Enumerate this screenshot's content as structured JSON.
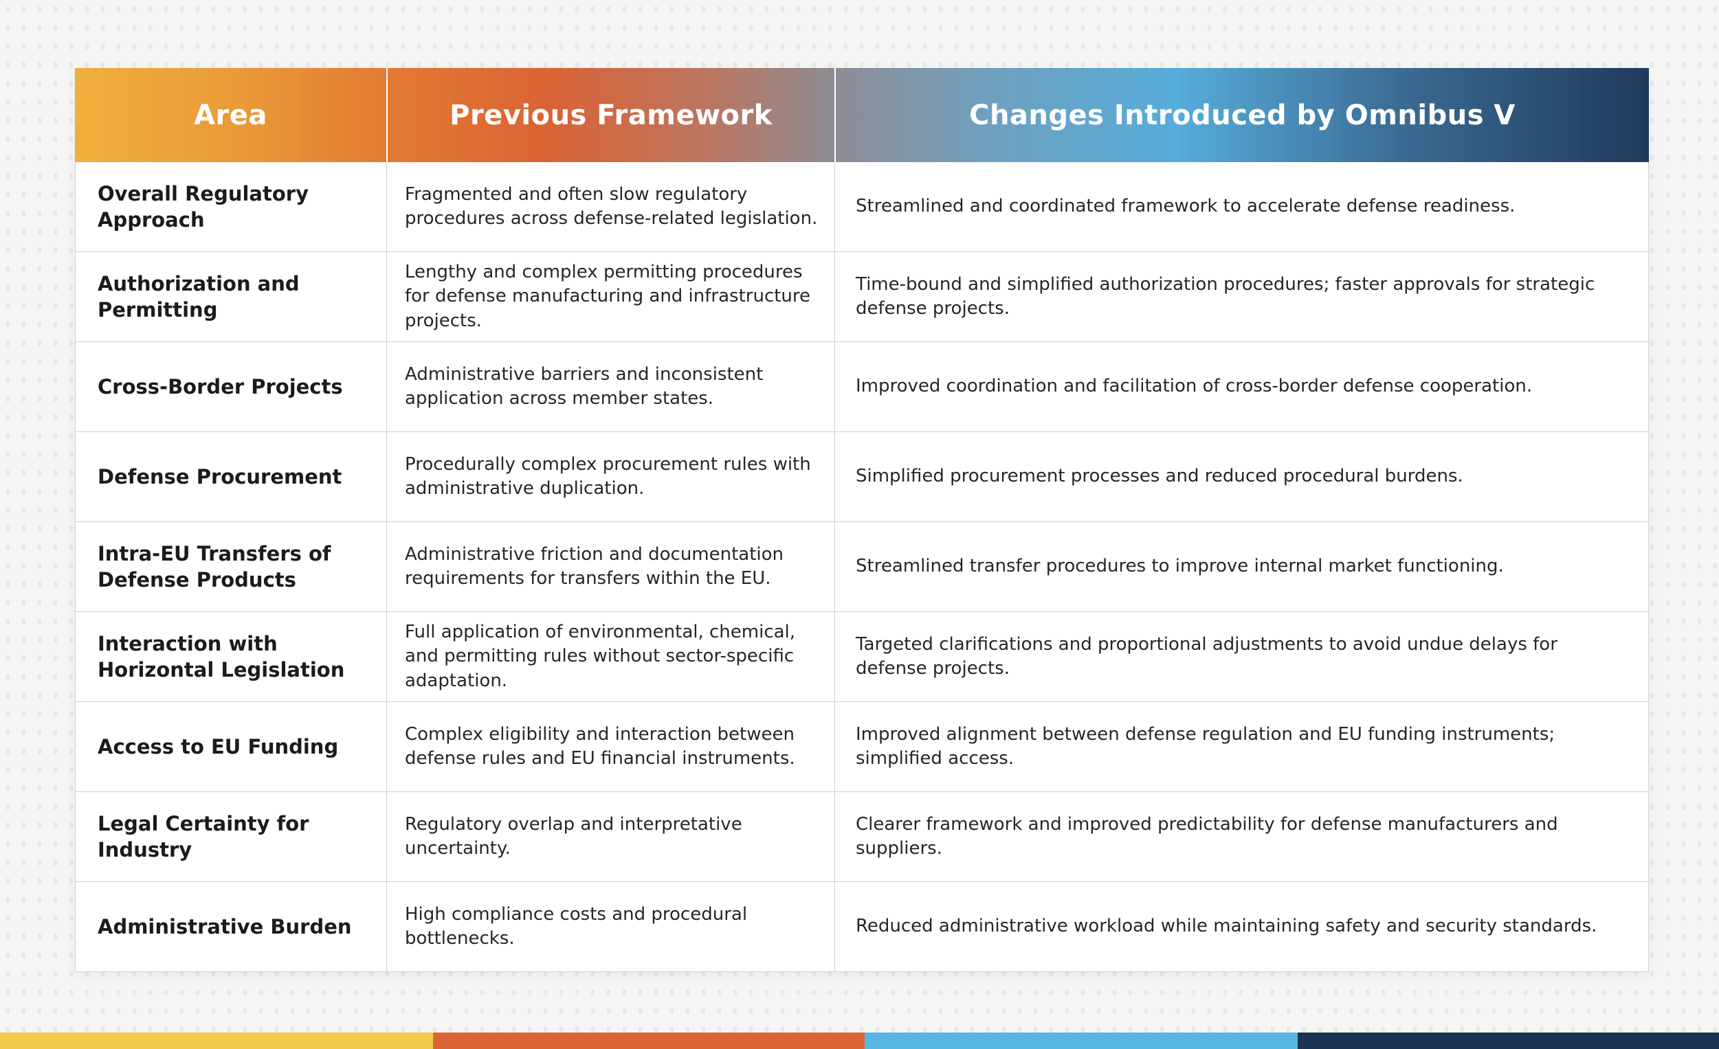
{
  "theme": {
    "css_vars": {
      "bg": "#f6f6f5",
      "dot": "#e8e8e8",
      "grad-1": "#EFAF3C",
      "grad-2": "#EA9B38",
      "grad-3": "#E37A33",
      "grad-4": "#DA6334",
      "grad-5": "#BC7560",
      "grad-6": "#8F8B93",
      "grad-7": "#6FA0BE",
      "grad-8": "#56ACDA",
      "grad-9": "#3A6890",
      "grad-10": "#203A5C",
      "bar-yellow": "#F2C94C",
      "bar-orange": "#DC6434",
      "bar-blue": "#57B6E2",
      "bar-navy": "#1B3453",
      "header-text": "#FFFFFF",
      "area-text": "#1B1B1B",
      "body-text": "#262626",
      "grid-line": "#CFCFCF",
      "row-bg": "#FFFFFF"
    }
  },
  "table": {
    "headers": [
      "Area",
      "Previous Framework",
      "Changes Introduced by Omnibus V"
    ],
    "rows": [
      {
        "area": "Overall Regulatory Approach",
        "previous": "Fragmented and often slow regulatory procedures across defense-related legislation.",
        "changes": "Streamlined and coordinated framework to accelerate defense readiness."
      },
      {
        "area": "Authorization and Permitting",
        "previous": "Lengthy and complex permitting procedures for defense manufacturing and infrastructure projects.",
        "changes": "Time-bound and simplified authorization procedures; faster approvals for strategic defense projects."
      },
      {
        "area": "Cross-Border Projects",
        "previous": "Administrative barriers and inconsistent application across member states.",
        "changes": "Improved coordination and facilitation of cross-border defense cooperation."
      },
      {
        "area": "Defense Procurement",
        "previous": "Procedurally complex procurement rules with administrative duplication.",
        "changes": "Simplified procurement processes and reduced procedural burdens."
      },
      {
        "area": "Intra-EU Transfers of Defense Products",
        "previous": "Administrative friction and documentation requirements for transfers within the EU.",
        "changes": "Streamlined transfer procedures to improve internal market functioning."
      },
      {
        "area": "Interaction with Horizontal Legislation",
        "previous": "Full application of environmental, chemical, and permitting rules without sector-specific adaptation.",
        "changes": "Targeted clarifications and proportional adjustments to avoid undue delays for defense projects."
      },
      {
        "area": "Access to EU Funding",
        "previous": "Complex eligibility and interaction between defense rules and EU financial instruments.",
        "changes": "Improved alignment between defense regulation and EU funding instruments; simplified access."
      },
      {
        "area": "Legal Certainty for Industry",
        "previous": "Regulatory overlap and interpretative uncertainty.",
        "changes": "Clearer framework and improved predictability for defense manufacturers and suppliers."
      },
      {
        "area": "Administrative Burden",
        "previous": "High compliance costs and procedural bottlenecks.",
        "changes": "Reduced administrative workload while maintaining safety and security standards."
      }
    ]
  },
  "footer_bar": {
    "segment_colors": [
      "#F2C94C",
      "#DC6434",
      "#57B6E2",
      "#1B3453"
    ]
  }
}
